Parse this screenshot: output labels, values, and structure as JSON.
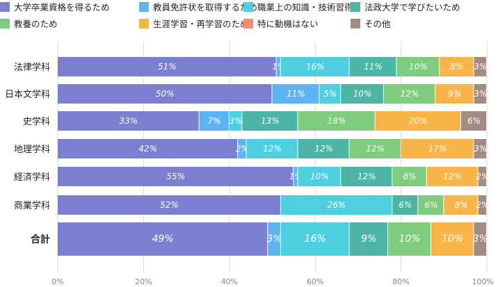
{
  "chart_data": {
    "type": "bar",
    "orientation": "horizontal",
    "stacked": true,
    "title": "",
    "xlabel": "",
    "ylabel": "",
    "xlim": [
      0,
      100
    ],
    "x_ticks": [
      0,
      20,
      40,
      60,
      80,
      100
    ],
    "tick_suffix": "%",
    "label_suffix": "%",
    "grid": true,
    "legend_position": "top",
    "categories": [
      "法律学科",
      "日本文学科",
      "史学科",
      "地理学科",
      "経済学科",
      "商業学科",
      "合計"
    ],
    "series": [
      {
        "name": "大学卒業資格を得るため",
        "color": "#7b7fcf",
        "values": [
          51,
          50,
          33,
          42,
          55,
          52,
          49
        ]
      },
      {
        "name": "教員免許状を取得するため",
        "color": "#5eb4f2",
        "values": [
          1,
          11,
          7,
          2,
          1,
          0,
          3
        ]
      },
      {
        "name": "職業上の知識・技術習得",
        "color": "#4ecfe0",
        "values": [
          16,
          5,
          3,
          12,
          10,
          26,
          16
        ]
      },
      {
        "name": "法政大学で学びたいため",
        "color": "#4db5a5",
        "values": [
          11,
          10,
          13,
          12,
          12,
          6,
          9
        ]
      },
      {
        "name": "教養のため",
        "color": "#7fcb7f",
        "values": [
          10,
          12,
          18,
          12,
          8,
          6,
          10
        ]
      },
      {
        "name": "生涯学習・再学習のため",
        "color": "#fab54a",
        "values": [
          8,
          9,
          20,
          17,
          12,
          8,
          10
        ]
      },
      {
        "name": "特に動機はない",
        "color": "#f98a6c",
        "values": [
          0,
          0,
          0,
          0,
          0,
          0,
          0
        ]
      },
      {
        "name": "その他",
        "color": "#a08c85",
        "values": [
          3,
          3,
          6,
          3,
          2,
          2,
          3
        ]
      }
    ]
  }
}
